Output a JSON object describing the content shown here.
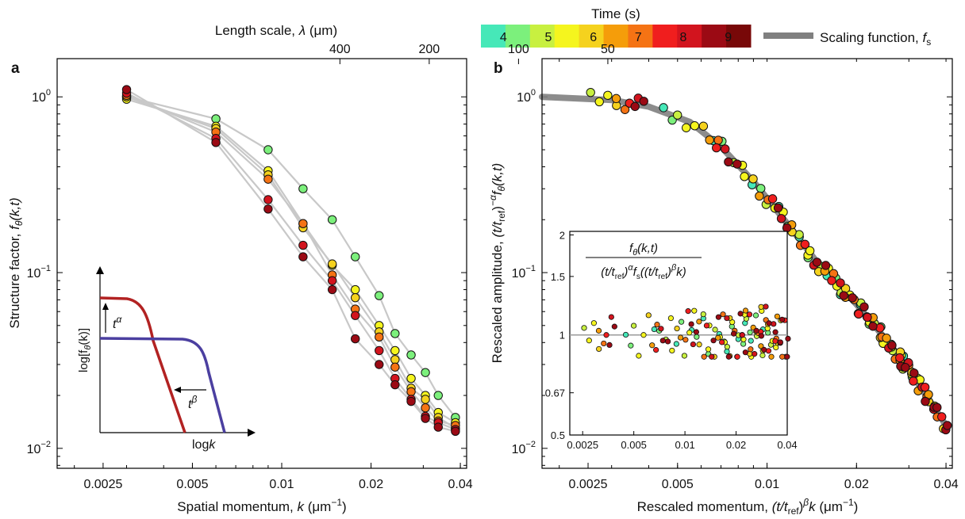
{
  "figure": {
    "colorbar": {
      "title": "Time (s)",
      "labels": [
        "4",
        "5",
        "6",
        "7",
        "8",
        "9"
      ],
      "colors": [
        "#46e8b8",
        "#7cf07c",
        "#c8f040",
        "#f5f51e",
        "#f5d21e",
        "#f59d0a",
        "#f57314",
        "#f01e1e",
        "#d2141e",
        "#9b0a14",
        "#780808"
      ]
    },
    "legend": {
      "label_main": "Scaling function, ",
      "label_italic": "f",
      "label_sub": "s",
      "color": "#808080"
    }
  },
  "chart_data": [
    {
      "panel": "a",
      "type": "scatter",
      "title": "",
      "top_axis": {
        "label_main": "Length scale, ",
        "label_symbol": "λ",
        "label_unit": " (μm)",
        "tick_labels": [
          "400",
          "200",
          "100",
          "50"
        ],
        "tick_values_um": [
          400,
          200,
          100,
          50
        ]
      },
      "xlabel_main": "Spatial momentum, ",
      "xlabel_symbol": "k",
      "xlabel_unit": " (μm",
      "ylabel_main": "Structure factor, ",
      "ylabel_symbol": "f",
      "ylabel_sub": "θ",
      "ylabel_args": "(k,t)",
      "xscale": "log",
      "yscale": "log",
      "xlim": [
        0.00175,
        0.042
      ],
      "ylim": [
        0.0077,
        1.65
      ],
      "x_tick_labels": [
        "0.0025",
        "0.005",
        "0.01",
        "0.02",
        "0.04"
      ],
      "x_tick_values": [
        0.0025,
        0.005,
        0.01,
        0.02,
        0.04
      ],
      "y_tick_values": [
        1,
        0.1,
        0.01
      ],
      "y_tick_labels": [
        {
          "base": "10",
          "exp": "0"
        },
        {
          "base": "10",
          "exp": "−1"
        },
        {
          "base": "10",
          "exp": "−2"
        }
      ],
      "k_values": [
        0.003,
        0.006,
        0.009,
        0.0118,
        0.0148,
        0.0177,
        0.0213,
        0.0241,
        0.0273,
        0.0305,
        0.0337,
        0.0385
      ],
      "series": [
        {
          "time_s": 4.0,
          "values": [
            1.0,
            0.75,
            0.5,
            0.3,
            0.2,
            0.123,
            0.074,
            0.045,
            0.034,
            0.027,
            0.02,
            0.015
          ]
        },
        {
          "time_s": 5.0,
          "values": [
            0.97,
            0.68,
            0.38,
            0.19,
            0.11,
            0.08,
            0.05,
            0.036,
            0.025,
            0.02,
            0.016,
            0.014
          ]
        },
        {
          "time_s": 6.0,
          "values": [
            1.0,
            0.66,
            0.36,
            0.18,
            0.112,
            0.072,
            0.046,
            0.032,
            0.022,
            0.019,
            0.015,
            0.013
          ]
        },
        {
          "time_s": 7.0,
          "values": [
            1.02,
            0.63,
            0.34,
            0.19,
            0.097,
            0.062,
            0.043,
            0.029,
            0.021,
            0.017,
            0.0143,
            0.0135
          ]
        },
        {
          "time_s": 8.0,
          "values": [
            1.05,
            0.58,
            0.26,
            0.143,
            0.09,
            0.057,
            0.036,
            0.025,
            0.019,
            0.0152,
            0.014,
            0.0128
          ]
        },
        {
          "time_s": 9.0,
          "values": [
            1.1,
            0.55,
            0.23,
            0.123,
            0.08,
            0.042,
            0.03,
            0.023,
            0.0185,
            0.0148,
            0.0132,
            0.0125
          ]
        }
      ],
      "inset": {
        "type": "schematic",
        "ylabel": "log[f",
        "ylabel_sub": "θ",
        "ylabel_end": "(k)]",
        "xlabel": "log",
        "xlabel_italic": "k",
        "arrow_up_label": "t",
        "arrow_up_exp": "α",
        "arrow_left_label": "t",
        "arrow_left_exp": "β",
        "curve_colors": [
          "#b22222",
          "#4b3fa0"
        ]
      }
    },
    {
      "panel": "b",
      "type": "scatter",
      "title": "",
      "xlabel_main": "Rescaled momentum, ",
      "xlabel_pre": "(t/t",
      "xlabel_sub": "ref",
      "xlabel_close": ")",
      "xlabel_exp": "β",
      "xlabel_k": "k",
      "xlabel_unit": " (μm",
      "ylabel_main": "Rescaled amplitude, ",
      "ylabel_pre": "(t/t",
      "ylabel_sub": "ref",
      "ylabel_close": ")",
      "ylabel_exp": "−α",
      "ylabel_f": "f",
      "ylabel_fsub": "θ",
      "ylabel_args": "(k,t)",
      "xscale": "log",
      "yscale": "log",
      "xlim": [
        0.00175,
        0.042
      ],
      "ylim": [
        0.0077,
        1.65
      ],
      "x_tick_labels": [
        "0.0025",
        "0.005",
        "0.01",
        "0.02",
        "0.04"
      ],
      "x_tick_values": [
        0.0025,
        0.005,
        0.01,
        0.02,
        0.04
      ],
      "y_tick_values": [
        1,
        0.1,
        0.01
      ],
      "y_tick_labels": [
        {
          "base": "10",
          "exp": "0"
        },
        {
          "base": "10",
          "exp": "−1"
        },
        {
          "base": "10",
          "exp": "−2"
        }
      ],
      "scaling_function": {
        "x": [
          0.00175,
          0.003,
          0.004,
          0.0055,
          0.007,
          0.009,
          0.012,
          0.015,
          0.02,
          0.025,
          0.03,
          0.035,
          0.04
        ],
        "y": [
          1.0,
          0.96,
          0.88,
          0.72,
          0.52,
          0.33,
          0.18,
          0.11,
          0.066,
          0.042,
          0.028,
          0.019,
          0.0135
        ]
      },
      "inset": {
        "type": "scatter",
        "title_num": "f",
        "title_num_sub": "θ",
        "title_num_args": "(k,t)",
        "title_den_1": "(t/t",
        "title_den_sub": "ref",
        "title_den_2": ")",
        "title_den_exp1": "α",
        "title_den_f": "f",
        "title_den_fsub": "s",
        "title_den_3": "((t/t",
        "title_den_sub2": "ref",
        "title_den_4": ")",
        "title_den_exp2": "β",
        "title_den_5": "k)",
        "xscale": "log",
        "yscale": "log",
        "xlim": [
          0.0021,
          0.04
        ],
        "ylim": [
          0.5,
          2.05
        ],
        "x_tick_labels": [
          "0.0025",
          "0.005",
          "0.01",
          "0.02",
          "0.04"
        ],
        "x_tick_values": [
          0.0025,
          0.005,
          0.01,
          0.02,
          0.04
        ],
        "y_tick_labels": [
          "2",
          "1.5",
          "1",
          "0.67",
          "0.5"
        ],
        "y_tick_values": [
          2,
          1.5,
          1,
          0.67,
          0.5
        ],
        "reference_line": 1
      }
    }
  ]
}
